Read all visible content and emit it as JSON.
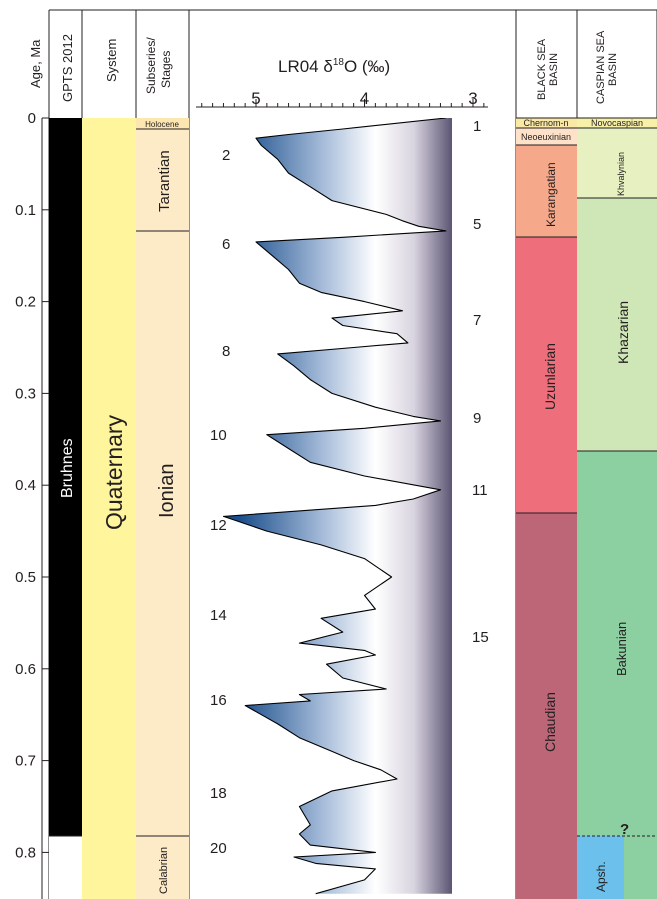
{
  "headers": {
    "age": "Age, Ma",
    "gpts": "GPTS 2012",
    "system": "System",
    "stages_line1": "Subseries/",
    "stages_line2": "Stages",
    "lr04_prefix": "LR04 δ",
    "lr04_sup": "18",
    "lr04_suffix": "O (‰)",
    "black_sea_line1": "BLACK SEA",
    "black_sea_line2": "BASIN",
    "caspian_line1": "CASPIAN SEA",
    "caspian_line2": "BASIN"
  },
  "age_ticks": [
    "0",
    "0.1",
    "0.2",
    "0.3",
    "0.4",
    "0.5",
    "0.6",
    "0.7",
    "0.8"
  ],
  "d18o_ticks": [
    "5",
    "4",
    "3"
  ],
  "colors": {
    "polarity_normal": "#000000",
    "system": "#fff59d",
    "stages": "#fdebc8",
    "holocene": "#fde7b0",
    "chernomorian": "#f9e8a6",
    "neoeuxinian": "#fde1c8",
    "karangatian": "#f6a98a",
    "uzunlarian": "#ee6e7b",
    "chaudian": "#bc6678",
    "novocaspian": "#f6f0a8",
    "khvalynian": "#e6f0c0",
    "khazarian": "#cfe6b6",
    "bakunian": "#8ccfa0",
    "apsheronian": "#6cc1ec",
    "curve_glacial": "#1b4f8c",
    "curve_interglacial": "#5c5573"
  },
  "labels": {
    "polarity": "Bruhnes",
    "system": "Quaternary",
    "holocene": "Holocene",
    "tarantian": "Tarantian",
    "ionian": "Ionian",
    "calabrian": "Calabrian",
    "chernomorian": "Chernom-n",
    "neoeuxinian": "Neoeuxinian",
    "karangatian": "Karangatian",
    "uzunlarian": "Uzunlarian",
    "chaudian": "Chaudian",
    "novocaspian": "Novocaspian",
    "khvalynian": "Khvalynian",
    "khazarian": "Khazarian",
    "bakunian": "Bakunian",
    "apsheronian": "Apsh.",
    "uncertain": "?"
  },
  "mis_labels": [
    "1",
    "2",
    "5",
    "6",
    "7",
    "8",
    "9",
    "10",
    "11",
    "12",
    "14",
    "15",
    "16",
    "18",
    "20"
  ],
  "chart_data": {
    "type": "line",
    "y_axis": "Age, Ma",
    "x_axis": "LR04 δ18O (‰)",
    "xlim": [
      5.5,
      3
    ],
    "ylim": [
      0,
      0.85
    ],
    "series": [
      {
        "x": [
          3.25,
          4.2,
          4.7,
          5.0,
          4.95,
          4.8,
          4.7,
          4.5,
          4.3,
          3.8,
          3.65,
          3.5,
          3.25,
          4.2,
          5.0,
          4.85,
          4.7,
          4.6,
          4.4,
          4.0,
          3.65,
          4.3,
          4.2,
          3.7,
          3.6,
          4.1,
          4.8,
          4.65,
          4.5,
          4.3,
          3.9,
          3.55,
          3.3,
          4.0,
          4.9,
          4.7,
          4.5,
          4.0,
          3.3,
          3.55,
          3.9,
          5.3,
          5.15,
          4.9,
          4.4,
          4.0,
          3.75,
          4.0,
          3.9,
          4.4,
          4.2,
          4.6,
          4.0,
          3.9,
          4.35,
          4.2,
          3.8,
          4.6,
          4.5,
          5.1,
          4.95,
          4.8,
          4.6,
          4.3,
          4.1,
          3.85,
          3.7,
          4.3,
          4.6,
          4.5,
          4.6,
          4.5,
          3.9,
          4.65,
          4.45,
          3.9,
          4.0,
          4.45
        ],
        "y": [
          0.0,
          0.012,
          0.018,
          0.022,
          0.03,
          0.045,
          0.06,
          0.075,
          0.09,
          0.105,
          0.112,
          0.118,
          0.123,
          0.13,
          0.135,
          0.15,
          0.165,
          0.18,
          0.19,
          0.2,
          0.21,
          0.218,
          0.226,
          0.235,
          0.245,
          0.25,
          0.257,
          0.27,
          0.285,
          0.3,
          0.315,
          0.325,
          0.33,
          0.338,
          0.345,
          0.36,
          0.375,
          0.39,
          0.405,
          0.415,
          0.422,
          0.434,
          0.44,
          0.45,
          0.465,
          0.48,
          0.5,
          0.52,
          0.535,
          0.545,
          0.56,
          0.572,
          0.58,
          0.585,
          0.595,
          0.61,
          0.622,
          0.628,
          0.635,
          0.64,
          0.65,
          0.66,
          0.675,
          0.69,
          0.7,
          0.71,
          0.72,
          0.733,
          0.75,
          0.77,
          0.78,
          0.792,
          0.8,
          0.805,
          0.812,
          0.818,
          0.83,
          0.845
        ]
      }
    ]
  }
}
